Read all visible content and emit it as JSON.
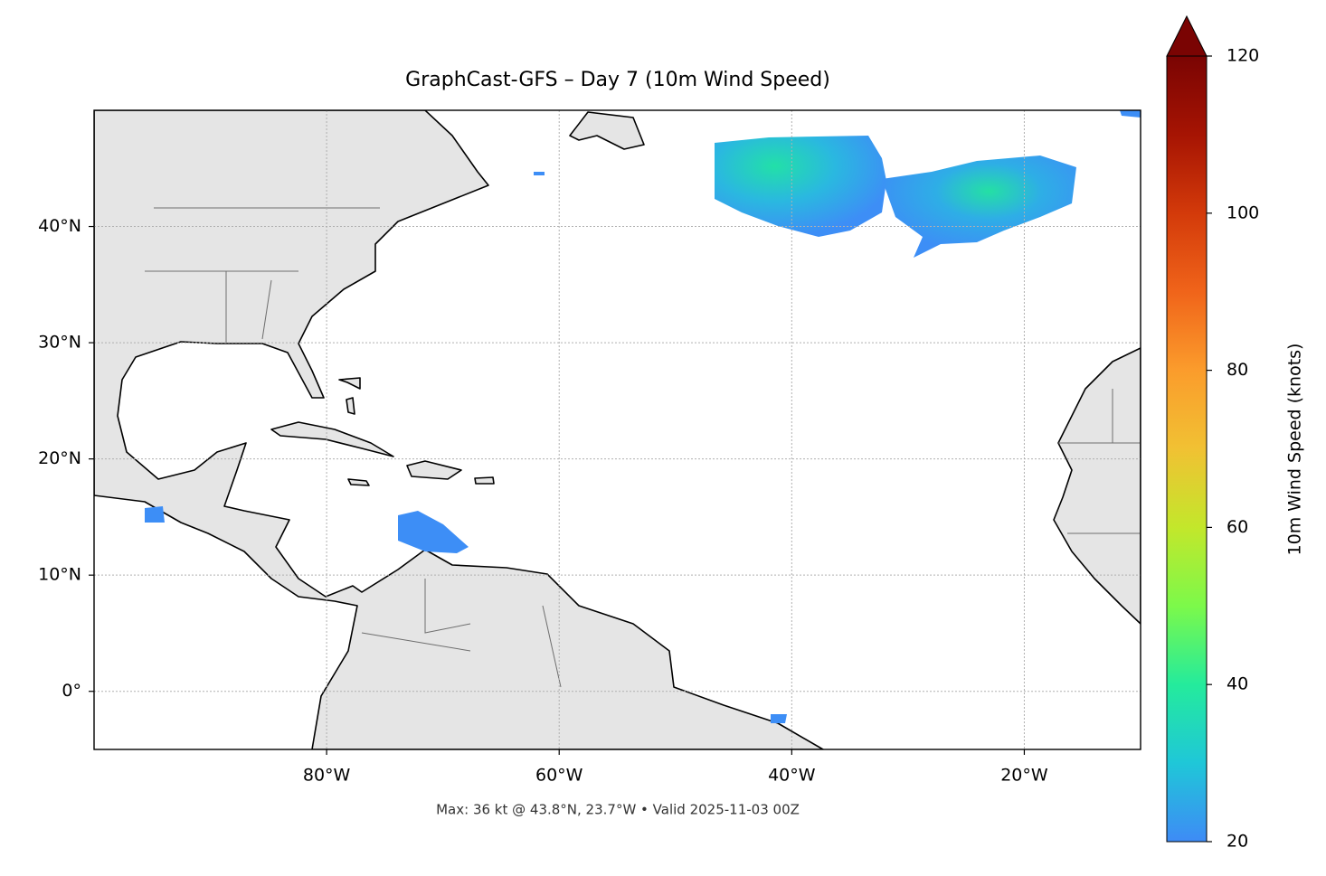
{
  "chart_data": {
    "type": "map",
    "title": "GraphCast-GFS – Day 7 (10m Wind Speed)",
    "footnote": "Max: 36 kt @ 43.8°N, 23.7°W • Valid 2025-11-03 00Z",
    "xlim": [
      -100,
      -10
    ],
    "ylim": [
      -5,
      50
    ],
    "xticks": [
      {
        "value": -80,
        "label": "80°W"
      },
      {
        "value": -60,
        "label": "60°W"
      },
      {
        "value": -40,
        "label": "40°W"
      },
      {
        "value": -20,
        "label": "20°W"
      }
    ],
    "yticks": [
      {
        "value": 0,
        "label": "0°"
      },
      {
        "value": 10,
        "label": "10°N"
      },
      {
        "value": 20,
        "label": "20°N"
      },
      {
        "value": 30,
        "label": "30°N"
      },
      {
        "value": 40,
        "label": "40°N"
      }
    ],
    "grid": true,
    "colorbar": {
      "label": "10m Wind Speed (knots)",
      "colormap": "turbo",
      "extend": "max",
      "lim": [
        20,
        120
      ],
      "ticks": [
        20,
        40,
        60,
        80,
        100,
        120
      ]
    }
  }
}
